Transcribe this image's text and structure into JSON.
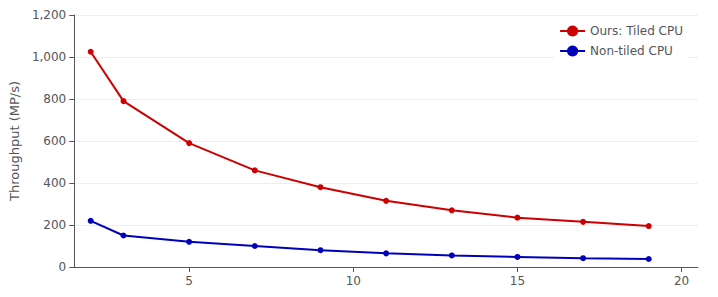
{
  "chart_data": {
    "type": "line",
    "x": [
      2,
      3,
      5,
      7,
      9,
      11,
      13,
      15,
      17,
      19
    ],
    "series": [
      {
        "name": "Ours: Tiled CPU",
        "color": "#cc0000",
        "values": [
          1025,
          790,
          590,
          460,
          380,
          315,
          270,
          235,
          215,
          195
        ]
      },
      {
        "name": "Non-tiled CPU",
        "color": "#0000bb",
        "values": [
          220,
          150,
          120,
          100,
          80,
          65,
          55,
          48,
          42,
          38
        ]
      }
    ],
    "ylabel": "Throughput (MP/s)",
    "xlim": [
      1.5,
      20.5
    ],
    "ylim": [
      0,
      1200
    ],
    "xticks": [
      5,
      10,
      15,
      20
    ],
    "yticks": [
      0,
      200,
      400,
      600,
      800,
      1000,
      1200
    ],
    "grid": true,
    "legend": "upper right",
    "marker": "circle",
    "line_style": "solid"
  }
}
